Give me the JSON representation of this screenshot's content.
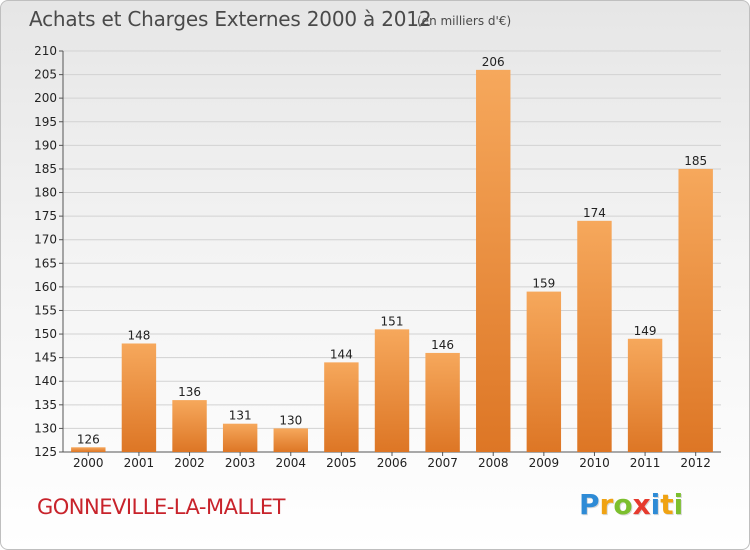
{
  "header": {
    "title": "Achats et Charges Externes 2000 à 2012",
    "subtitle": "(en milliers d'€)"
  },
  "footer": {
    "commune": "GONNEVILLE-LA-MALLET",
    "logo_letters": [
      "P",
      "r",
      "o",
      "x",
      "i",
      "t",
      "i"
    ]
  },
  "colors": {
    "bar_light": "#f6a85c",
    "bar_dark": "#dd7625",
    "grid": "#d2d2d2",
    "axis": "#555555",
    "commune": "#c8232b",
    "logo": [
      "#2e8bd6",
      "#f0a313",
      "#7cbf2e",
      "#e63a2e",
      "#2e8bd6",
      "#f0a313",
      "#7cbf2e"
    ]
  },
  "chart_data": {
    "type": "bar",
    "title": "Achats et Charges Externes 2000 à 2012",
    "subtitle": "(en milliers d'€)",
    "categories": [
      "2000",
      "2001",
      "2002",
      "2003",
      "2004",
      "2005",
      "2006",
      "2007",
      "2008",
      "2009",
      "2010",
      "2011",
      "2012"
    ],
    "values": [
      126,
      148,
      136,
      131,
      130,
      144,
      151,
      146,
      206,
      159,
      174,
      149,
      185
    ],
    "ylim": [
      125,
      210
    ],
    "yticks": [
      125,
      130,
      135,
      140,
      145,
      150,
      155,
      160,
      165,
      170,
      175,
      180,
      185,
      190,
      195,
      200,
      205,
      210
    ],
    "grid": true,
    "xlabel": "",
    "ylabel": ""
  }
}
